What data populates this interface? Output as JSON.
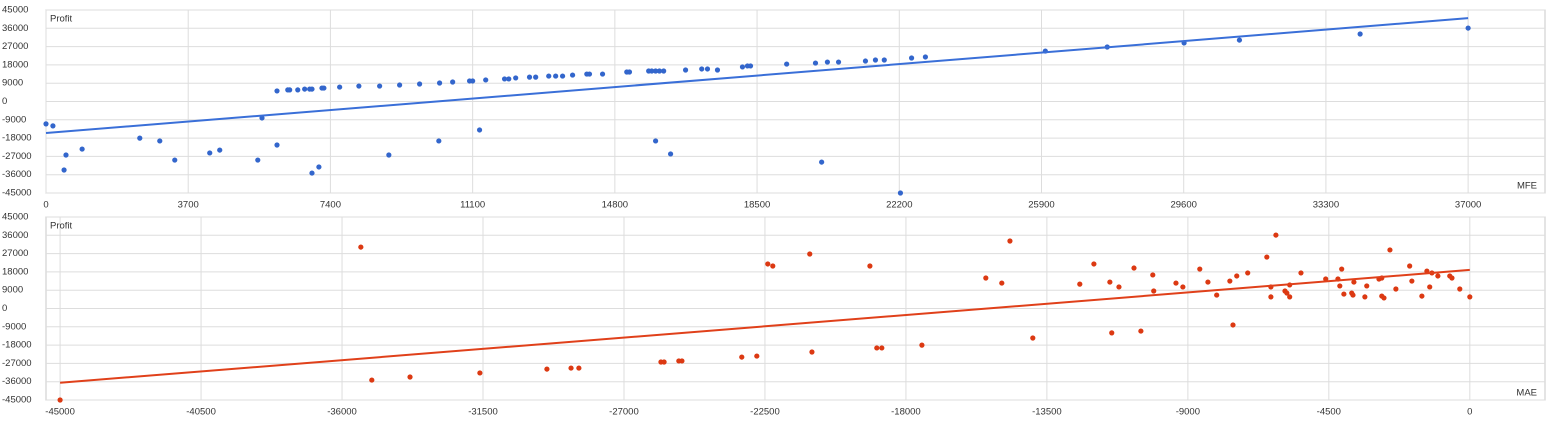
{
  "chart_data": [
    {
      "type": "scatter",
      "y_label": "Profit",
      "x_label": "MFE",
      "xlim": [
        0,
        39000
      ],
      "ylim": [
        -45000,
        45000
      ],
      "xticks": [
        0,
        3700,
        7400,
        11100,
        14800,
        18500,
        22200,
        25900,
        29600,
        33300,
        37000
      ],
      "yticks": [
        -45000,
        -36000,
        -27000,
        -18000,
        -9000,
        0,
        9000,
        18000,
        27000,
        36000,
        45000
      ],
      "grid": true,
      "series": [
        {
          "color": "#3366cc",
          "x": [
            0,
            180,
            520,
            470,
            940,
            2440,
            2960,
            3350,
            4260,
            4520,
            5510,
            5620,
            6010,
            6010,
            6290,
            6340,
            6550,
            6730,
            6860,
            6920,
            7180,
            7230,
            6920,
            7100,
            7640,
            8140,
            8680,
            8920,
            9200,
            9720,
            10240,
            10220,
            10580,
            11020,
            11100,
            11280,
            11440,
            11930,
            12040,
            12220,
            12580,
            12740,
            13080,
            13260,
            13440,
            13700,
            14070,
            14140,
            14480,
            15110,
            15180,
            15680,
            15760,
            15860,
            15960,
            16070,
            15860,
            16250,
            16640,
            17060,
            17210,
            17470,
            18120,
            18250,
            18330,
            19270,
            20020,
            20180,
            20330,
            20620,
            21320,
            21580,
            21810,
            22230,
            22520,
            22880,
            26000,
            27610,
            29610,
            31050,
            34190,
            37000
          ],
          "y": [
            -11000,
            -12000,
            -26300,
            -33700,
            -23400,
            -18000,
            -19400,
            -28800,
            -25300,
            -23900,
            -28800,
            -8100,
            5200,
            -21400,
            5700,
            5700,
            5700,
            6100,
            6100,
            6100,
            6600,
            6600,
            -35200,
            -32200,
            7100,
            7600,
            7600,
            -26300,
            8100,
            8600,
            9100,
            -19400,
            9600,
            10100,
            10100,
            -14000,
            10600,
            11100,
            11100,
            11600,
            12000,
            12000,
            12500,
            12500,
            12500,
            13000,
            13500,
            13500,
            13500,
            14500,
            14500,
            15000,
            15000,
            15000,
            15000,
            15000,
            -19400,
            -25800,
            15500,
            16000,
            16000,
            15500,
            17000,
            17500,
            17500,
            18400,
            18900,
            -29800,
            19400,
            19400,
            19900,
            20400,
            20400,
            -45000,
            21400,
            21900,
            24800,
            26800,
            28800,
            30200,
            33200,
            36100
          ]
        }
      ],
      "trendline": {
        "color": "#3a6fd8",
        "x": [
          0,
          37000
        ],
        "y": [
          -15500,
          41000
        ]
      }
    },
    {
      "type": "scatter",
      "y_label": "Profit",
      "x_label": "MAE",
      "xlim": [
        -45450,
        2400
      ],
      "ylim": [
        -45000,
        45000
      ],
      "xticks": [
        -45000,
        -40500,
        -36000,
        -31500,
        -27000,
        -22500,
        -18000,
        -13500,
        -9000,
        -4500,
        0
      ],
      "yticks": [
        -45000,
        -36000,
        -27000,
        -18000,
        -9000,
        0,
        9000,
        18000,
        27000,
        36000,
        45000
      ],
      "grid": true,
      "series": [
        {
          "color": "#dc3912",
          "x": [
            -45000,
            -35400,
            -35050,
            -33830,
            -31600,
            -29460,
            -28690,
            -28440,
            -25820,
            -25720,
            -25250,
            -25150,
            -23240,
            -22760,
            -22410,
            -22250,
            -21070,
            -21000,
            -19150,
            -18930,
            -18770,
            -17490,
            -15450,
            -14940,
            -14680,
            -13950,
            -12450,
            -12000,
            -11490,
            -11430,
            -11200,
            -10720,
            -10500,
            -10120,
            -10090,
            -9380,
            -9160,
            -8620,
            -8360,
            -8080,
            -7660,
            -7560,
            -7440,
            -7090,
            -6480,
            -6350,
            -6350,
            -6190,
            -5900,
            -5840,
            -5750,
            -5750,
            -5390,
            -4600,
            -4210,
            -4150,
            -4090,
            -4020,
            -3770,
            -3700,
            -3730,
            -3350,
            -3290,
            -2900,
            -2810,
            -2810,
            -2740,
            -2550,
            -2360,
            -1920,
            -1850,
            -1530,
            -1370,
            -1280,
            -1210,
            -1020,
            -640,
            -570,
            -320,
            0
          ],
          "y": [
            -45000,
            30200,
            -35200,
            -33700,
            -31700,
            -29800,
            -29300,
            -29300,
            -26300,
            -26300,
            -25800,
            -25800,
            -23900,
            -23400,
            21900,
            20900,
            26800,
            -21400,
            20900,
            -19400,
            -19400,
            -18000,
            15000,
            12500,
            33200,
            -14500,
            12000,
            21900,
            13000,
            -12000,
            10600,
            19900,
            -11100,
            16500,
            8600,
            12500,
            10600,
            19400,
            13000,
            6600,
            13500,
            -8100,
            16000,
            17500,
            25300,
            10600,
            5700,
            36100,
            8600,
            7600,
            11600,
            5700,
            17500,
            14500,
            14500,
            11100,
            19400,
            7100,
            7600,
            13000,
            6600,
            5700,
            11100,
            14500,
            15000,
            6100,
            5200,
            28800,
            9600,
            20900,
            13500,
            6100,
            18400,
            10600,
            17500,
            16000,
            16000,
            15000,
            9600,
            5700
          ]
        }
      ],
      "trendline": {
        "color": "#e0401a",
        "x": [
          -45000,
          0
        ],
        "y": [
          -36500,
          19000
        ]
      }
    }
  ]
}
